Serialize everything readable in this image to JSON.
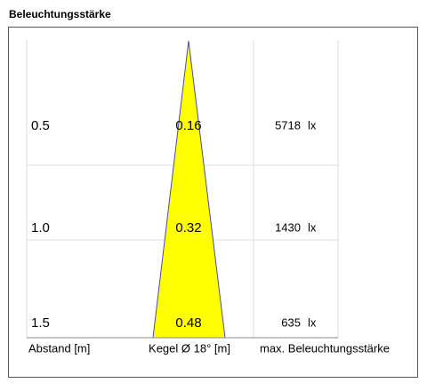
{
  "title": "Beleuchtungsstärke",
  "rows": [
    {
      "distance": "0.5",
      "diameter": "0.16",
      "illuminance": "5718"
    },
    {
      "distance": "1.0",
      "diameter": "0.32",
      "illuminance": "1430"
    },
    {
      "distance": "1.5",
      "diameter": "0.48",
      "illuminance": "635"
    }
  ],
  "unit": "lx",
  "columns": {
    "distance": "Abstand [m]",
    "diameter": "Kegel Ø 18° [m]",
    "illuminance": "max. Beleuchtungsstärke"
  }
}
